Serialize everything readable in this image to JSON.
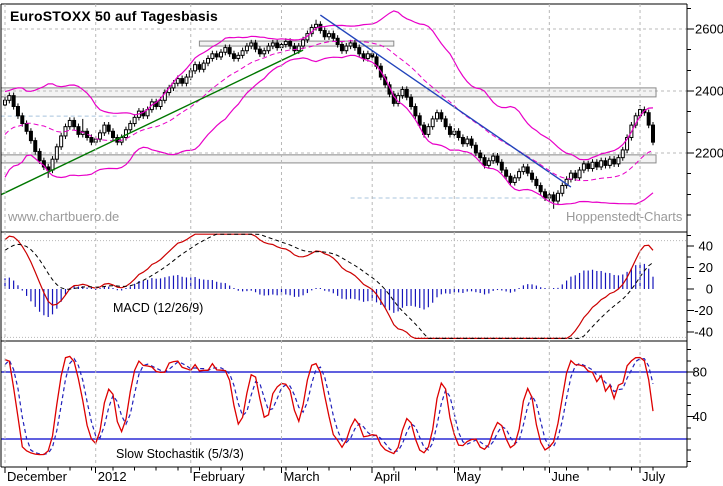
{
  "meta": {
    "title": "EuroSTOXX 50 auf Tagesbasis",
    "watermark_left": "www.chartbuero.de",
    "watermark_right": "Hoppenstedt-Charts"
  },
  "chart_data": {
    "type": "candlestick",
    "instrument": "EuroSTOXX 50",
    "timeframe_label": "Tagesbasis",
    "x_axis": {
      "months": [
        {
          "label": "December",
          "day": 0
        },
        {
          "label": "2012",
          "day": 21
        },
        {
          "label": "February",
          "day": 43
        },
        {
          "label": "March",
          "day": 64
        },
        {
          "label": "April",
          "day": 85
        },
        {
          "label": "May",
          "day": 104
        },
        {
          "label": "June",
          "day": 126
        },
        {
          "label": "July",
          "day": 147
        }
      ],
      "days_total": 151,
      "minor_tick_every_days": 5
    },
    "price_panel": {
      "ylim": [
        1945,
        2680
      ],
      "ticks_labeled": [
        2600,
        2400,
        2200
      ],
      "gridlines": [
        2600,
        2400,
        2200
      ],
      "minor_tick_step": 66.667,
      "candles_ohlc": [
        [
          2355,
          2380,
          2345,
          2370
        ],
        [
          2370,
          2395,
          2360,
          2385
        ],
        [
          2385,
          2395,
          2340,
          2350
        ],
        [
          2350,
          2360,
          2310,
          2320
        ],
        [
          2320,
          2330,
          2285,
          2295
        ],
        [
          2295,
          2305,
          2260,
          2270
        ],
        [
          2270,
          2280,
          2230,
          2240
        ],
        [
          2240,
          2250,
          2195,
          2205
        ],
        [
          2205,
          2215,
          2165,
          2175
        ],
        [
          2175,
          2185,
          2145,
          2155
        ],
        [
          2155,
          2165,
          2120,
          2145
        ],
        [
          2145,
          2190,
          2135,
          2180
        ],
        [
          2180,
          2230,
          2170,
          2220
        ],
        [
          2220,
          2265,
          2210,
          2255
        ],
        [
          2255,
          2295,
          2245,
          2285
        ],
        [
          2285,
          2315,
          2275,
          2305
        ],
        [
          2305,
          2315,
          2275,
          2285
        ],
        [
          2285,
          2295,
          2250,
          2260
        ],
        [
          2260,
          2310,
          2250,
          2270
        ],
        [
          2270,
          2280,
          2240,
          2250
        ],
        [
          2250,
          2260,
          2225,
          2235
        ],
        [
          2235,
          2255,
          2225,
          2245
        ],
        [
          2245,
          2275,
          2235,
          2265
        ],
        [
          2265,
          2300,
          2255,
          2290
        ],
        [
          2290,
          2300,
          2260,
          2270
        ],
        [
          2270,
          2280,
          2240,
          2250
        ],
        [
          2250,
          2260,
          2225,
          2235
        ],
        [
          2235,
          2260,
          2225,
          2250
        ],
        [
          2250,
          2285,
          2240,
          2275
        ],
        [
          2275,
          2305,
          2265,
          2295
        ],
        [
          2295,
          2325,
          2285,
          2315
        ],
        [
          2315,
          2345,
          2305,
          2335
        ],
        [
          2335,
          2345,
          2310,
          2320
        ],
        [
          2320,
          2350,
          2310,
          2340
        ],
        [
          2340,
          2375,
          2330,
          2365
        ],
        [
          2365,
          2375,
          2340,
          2350
        ],
        [
          2350,
          2380,
          2340,
          2370
        ],
        [
          2370,
          2405,
          2360,
          2395
        ],
        [
          2395,
          2420,
          2385,
          2410
        ],
        [
          2410,
          2435,
          2400,
          2425
        ],
        [
          2425,
          2450,
          2415,
          2440
        ],
        [
          2440,
          2450,
          2415,
          2425
        ],
        [
          2425,
          2455,
          2415,
          2445
        ],
        [
          2445,
          2475,
          2435,
          2465
        ],
        [
          2465,
          2495,
          2455,
          2485
        ],
        [
          2485,
          2495,
          2460,
          2470
        ],
        [
          2470,
          2500,
          2460,
          2490
        ],
        [
          2490,
          2515,
          2480,
          2505
        ],
        [
          2505,
          2530,
          2495,
          2520
        ],
        [
          2520,
          2530,
          2500,
          2510
        ],
        [
          2510,
          2535,
          2500,
          2525
        ],
        [
          2525,
          2550,
          2515,
          2540
        ],
        [
          2540,
          2550,
          2510,
          2520
        ],
        [
          2520,
          2530,
          2495,
          2505
        ],
        [
          2505,
          2525,
          2495,
          2515
        ],
        [
          2515,
          2540,
          2505,
          2530
        ],
        [
          2530,
          2555,
          2520,
          2545
        ],
        [
          2545,
          2565,
          2535,
          2555
        ],
        [
          2555,
          2565,
          2525,
          2535
        ],
        [
          2535,
          2545,
          2510,
          2520
        ],
        [
          2520,
          2540,
          2510,
          2530
        ],
        [
          2530,
          2555,
          2520,
          2545
        ],
        [
          2545,
          2565,
          2535,
          2555
        ],
        [
          2555,
          2565,
          2530,
          2540
        ],
        [
          2540,
          2560,
          2530,
          2550
        ],
        [
          2550,
          2570,
          2540,
          2560
        ],
        [
          2560,
          2570,
          2535,
          2545
        ],
        [
          2545,
          2555,
          2520,
          2530
        ],
        [
          2530,
          2555,
          2520,
          2545
        ],
        [
          2545,
          2575,
          2535,
          2565
        ],
        [
          2565,
          2595,
          2555,
          2585
        ],
        [
          2585,
          2615,
          2575,
          2605
        ],
        [
          2605,
          2630,
          2595,
          2615
        ],
        [
          2615,
          2625,
          2585,
          2595
        ],
        [
          2595,
          2605,
          2565,
          2575
        ],
        [
          2575,
          2595,
          2565,
          2585
        ],
        [
          2585,
          2595,
          2560,
          2570
        ],
        [
          2570,
          2580,
          2540,
          2550
        ],
        [
          2550,
          2560,
          2520,
          2530
        ],
        [
          2530,
          2555,
          2520,
          2545
        ],
        [
          2545,
          2565,
          2535,
          2555
        ],
        [
          2555,
          2565,
          2530,
          2540
        ],
        [
          2540,
          2550,
          2510,
          2520
        ],
        [
          2520,
          2530,
          2495,
          2505
        ],
        [
          2505,
          2530,
          2495,
          2520
        ],
        [
          2520,
          2530,
          2500,
          2510
        ],
        [
          2510,
          2520,
          2470,
          2480
        ],
        [
          2480,
          2490,
          2435,
          2445
        ],
        [
          2445,
          2455,
          2410,
          2420
        ],
        [
          2420,
          2430,
          2380,
          2390
        ],
        [
          2390,
          2400,
          2350,
          2360
        ],
        [
          2360,
          2395,
          2350,
          2385
        ],
        [
          2385,
          2415,
          2375,
          2405
        ],
        [
          2405,
          2415,
          2370,
          2380
        ],
        [
          2380,
          2390,
          2340,
          2350
        ],
        [
          2350,
          2360,
          2310,
          2320
        ],
        [
          2320,
          2330,
          2280,
          2290
        ],
        [
          2290,
          2300,
          2250,
          2260
        ],
        [
          2260,
          2295,
          2250,
          2285
        ],
        [
          2285,
          2320,
          2275,
          2310
        ],
        [
          2310,
          2340,
          2300,
          2330
        ],
        [
          2330,
          2340,
          2300,
          2310
        ],
        [
          2310,
          2320,
          2275,
          2285
        ],
        [
          2285,
          2295,
          2250,
          2260
        ],
        [
          2260,
          2280,
          2250,
          2270
        ],
        [
          2270,
          2280,
          2240,
          2250
        ],
        [
          2250,
          2260,
          2220,
          2230
        ],
        [
          2230,
          2255,
          2220,
          2245
        ],
        [
          2245,
          2255,
          2215,
          2225
        ],
        [
          2225,
          2235,
          2190,
          2200
        ],
        [
          2200,
          2210,
          2175,
          2185
        ],
        [
          2185,
          2195,
          2150,
          2160
        ],
        [
          2160,
          2185,
          2150,
          2175
        ],
        [
          2175,
          2200,
          2165,
          2190
        ],
        [
          2190,
          2200,
          2160,
          2170
        ],
        [
          2170,
          2180,
          2135,
          2145
        ],
        [
          2145,
          2155,
          2115,
          2125
        ],
        [
          2125,
          2135,
          2095,
          2105
        ],
        [
          2105,
          2130,
          2095,
          2120
        ],
        [
          2120,
          2150,
          2110,
          2140
        ],
        [
          2140,
          2165,
          2130,
          2155
        ],
        [
          2155,
          2165,
          2125,
          2135
        ],
        [
          2135,
          2145,
          2105,
          2115
        ],
        [
          2115,
          2125,
          2085,
          2095
        ],
        [
          2095,
          2105,
          2065,
          2075
        ],
        [
          2075,
          2085,
          2045,
          2055
        ],
        [
          2055,
          2075,
          2045,
          2065
        ],
        [
          2065,
          2075,
          2020,
          2045
        ],
        [
          2045,
          2080,
          2035,
          2070
        ],
        [
          2070,
          2105,
          2060,
          2095
        ],
        [
          2095,
          2125,
          2085,
          2115
        ],
        [
          2115,
          2145,
          2105,
          2135
        ],
        [
          2135,
          2145,
          2110,
          2120
        ],
        [
          2120,
          2155,
          2110,
          2145
        ],
        [
          2145,
          2175,
          2135,
          2165
        ],
        [
          2165,
          2175,
          2140,
          2150
        ],
        [
          2150,
          2180,
          2140,
          2170
        ],
        [
          2170,
          2180,
          2145,
          2155
        ],
        [
          2155,
          2185,
          2145,
          2175
        ],
        [
          2175,
          2185,
          2150,
          2160
        ],
        [
          2160,
          2190,
          2150,
          2180
        ],
        [
          2180,
          2190,
          2155,
          2165
        ],
        [
          2165,
          2195,
          2155,
          2185
        ],
        [
          2185,
          2220,
          2175,
          2210
        ],
        [
          2210,
          2260,
          2200,
          2250
        ],
        [
          2250,
          2300,
          2240,
          2290
        ],
        [
          2290,
          2330,
          2280,
          2320
        ],
        [
          2320,
          2355,
          2310,
          2340
        ],
        [
          2340,
          2350,
          2320,
          2330
        ],
        [
          2330,
          2340,
          2280,
          2290
        ],
        [
          2290,
          2300,
          2225,
          2235
        ]
      ],
      "bollinger": {
        "period": 20,
        "stddev": 2,
        "lead_in_closes": [
          2150,
          2100,
          2180,
          2250,
          2210,
          2160,
          2230,
          2280,
          2240,
          2200,
          2260,
          2300,
          2340,
          2290,
          2250,
          2220,
          2280,
          2320,
          2360,
          2355
        ]
      },
      "trend_lines": [
        {
          "name": "uptrend",
          "color": "#007700",
          "x1_day": -1,
          "price1": 2065,
          "x2_day": 69,
          "price2": 2532
        },
        {
          "name": "downtrend",
          "color": "#2244bb",
          "x1_day": 73,
          "price1": 2645,
          "x2_day": 131,
          "price2": 2090
        }
      ],
      "sr_zones": [
        {
          "from_day": -1,
          "to_day": 150.7,
          "price_low": 2381,
          "price_high": 2410
        },
        {
          "from_day": -1,
          "to_day": 150.7,
          "price_low": 2168,
          "price_high": 2194
        },
        {
          "from_day": 45,
          "to_day": 90,
          "price_low": 2545,
          "price_high": 2561
        }
      ],
      "faint_levels": [
        {
          "price": 2319,
          "from_day": -1,
          "to_day": 26
        },
        {
          "price": 2055,
          "from_day": 80,
          "to_day": 128
        }
      ]
    },
    "macd_panel": {
      "label": "MACD (12/26/9)",
      "params": {
        "fast": 12,
        "slow": 26,
        "signal": 9
      },
      "ylim": [
        -46,
        51
      ],
      "ticks_labeled": [
        40,
        20,
        0,
        -20,
        -40
      ],
      "tick_step": 10,
      "gridlines": [
        45,
        -45
      ]
    },
    "stoch_panel": {
      "label": "Slow Stochastik (5/3/3)",
      "params": {
        "k": 5,
        "slowing": 3,
        "d": 3
      },
      "ylim": [
        -5,
        107
      ],
      "ticks_labeled": [
        80,
        40
      ],
      "tick_step": 10,
      "ref_lines": [
        80,
        20
      ]
    },
    "colors": {
      "candle_up_fill": "#ffffff",
      "candle_down_fill": "#000000",
      "candle_outline": "#000000",
      "bollinger": "#e800c8",
      "macd_line": "#cc0000",
      "macd_signal": "#000000",
      "macd_histogram": "#1515bb",
      "stoch_k": "#dd0000",
      "stoch_d": "#2222bb",
      "stoch_ref": "#0000cc",
      "grid": "#b8b8b8",
      "sr_zone_border": "#8a8a8a",
      "faint_level": "#a8c4dd",
      "axis": "#000000",
      "uptrend": "#007700",
      "downtrend": "#2244bb"
    }
  }
}
